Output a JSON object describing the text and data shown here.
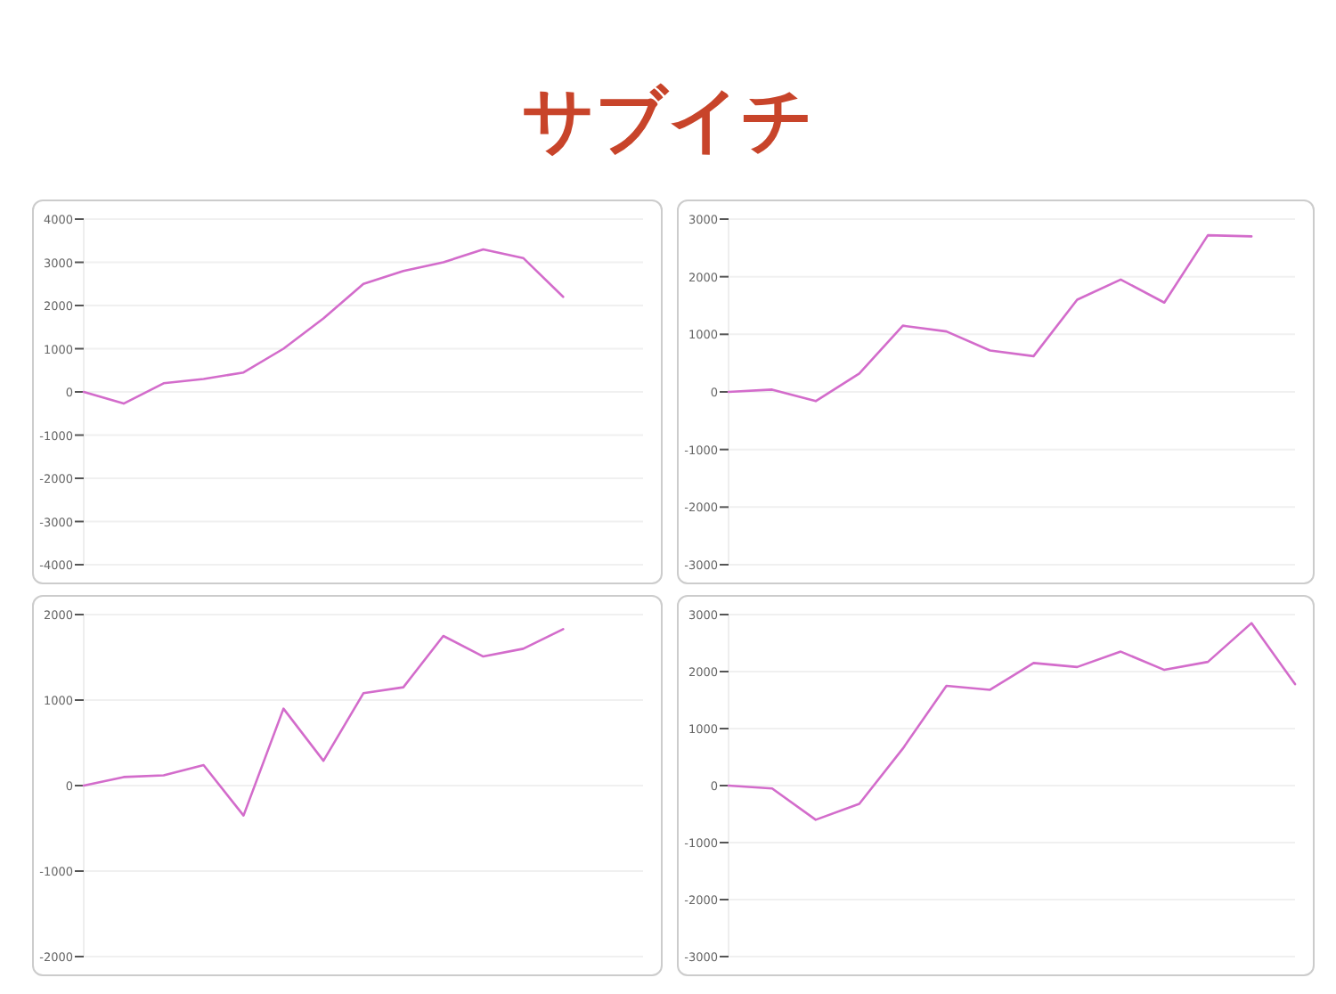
{
  "chart_data": [
    {
      "type": "line",
      "title": "サブイチ",
      "categories": [
        null,
        null,
        null,
        null,
        null,
        null,
        null,
        null,
        null,
        null,
        null,
        null,
        null,
        null,
        null
      ],
      "series": [
        {
          "color": "#d36ccb",
          "values": [
            0,
            -270,
            200,
            300,
            450,
            1000,
            1700,
            2500,
            2800,
            3000,
            3300,
            3100,
            2200,
            null,
            null
          ]
        }
      ],
      "ylim": [
        -4000,
        4000
      ],
      "yticks": [
        -4000,
        -3000,
        -2000,
        -1000,
        0,
        1000,
        2000,
        3000,
        4000
      ],
      "grid": "y",
      "tick_labels": "y"
    },
    {
      "type": "line",
      "categories": [
        null,
        null,
        null,
        null,
        null,
        null,
        null,
        null,
        null,
        null,
        null,
        null,
        null,
        null
      ],
      "series": [
        {
          "color": "#d36ccb",
          "values": [
            0,
            40,
            -160,
            320,
            1150,
            1050,
            720,
            620,
            1600,
            1950,
            1550,
            2720,
            2700,
            null
          ]
        }
      ],
      "ylim": [
        -3000,
        3000
      ],
      "yticks": [
        -3000,
        -2000,
        -1000,
        0,
        1000,
        2000,
        3000
      ],
      "grid": "y",
      "tick_labels": "y"
    },
    {
      "type": "line",
      "categories": [
        null,
        null,
        null,
        null,
        null,
        null,
        null,
        null,
        null,
        null,
        null,
        null,
        null,
        null,
        null
      ],
      "series": [
        {
          "color": "#d36ccb",
          "values": [
            0,
            100,
            120,
            240,
            -350,
            900,
            290,
            1080,
            1150,
            1750,
            1510,
            1600,
            1830,
            null,
            null
          ]
        }
      ],
      "ylim": [
        -2000,
        2000
      ],
      "yticks": [
        -2000,
        -1000,
        0,
        1000,
        2000
      ],
      "grid": "y",
      "tick_labels": "y"
    },
    {
      "type": "line",
      "categories": [
        null,
        null,
        null,
        null,
        null,
        null,
        null,
        null,
        null,
        null,
        null,
        null,
        null,
        null
      ],
      "series": [
        {
          "color": "#d36ccb",
          "values": [
            0,
            -50,
            -600,
            -320,
            650,
            1750,
            1680,
            2150,
            2080,
            2350,
            2030,
            2170,
            2850,
            1780
          ]
        }
      ],
      "ylim": [
        -3000,
        3000
      ],
      "yticks": [
        -3000,
        -2000,
        -1000,
        0,
        1000,
        2000,
        3000
      ],
      "grid": "y",
      "tick_labels": "y"
    }
  ]
}
